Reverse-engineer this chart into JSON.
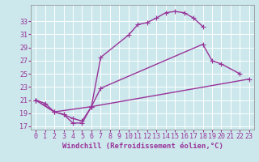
{
  "background_color": "#cce8ec",
  "grid_color": "#ffffff",
  "line_color": "#993399",
  "markersize": 4,
  "linewidth": 1.0,
  "xlim": [
    -0.5,
    23.5
  ],
  "ylim": [
    16.5,
    35.5
  ],
  "yticks": [
    17,
    19,
    21,
    23,
    25,
    27,
    29,
    31,
    33
  ],
  "xticks": [
    0,
    1,
    2,
    3,
    4,
    5,
    6,
    7,
    8,
    9,
    10,
    11,
    12,
    13,
    14,
    15,
    16,
    17,
    18,
    19,
    20,
    21,
    22,
    23
  ],
  "xlabel": "Windchill (Refroidissement éolien,°C)",
  "xlabel_fontsize": 6.5,
  "tick_fontsize": 6.0,
  "curve1_x": [
    0,
    1,
    2,
    3,
    4,
    5,
    6,
    7,
    10,
    11,
    12,
    13,
    14,
    15,
    16,
    17,
    18
  ],
  "curve1_y": [
    21.0,
    20.5,
    19.2,
    18.8,
    17.5,
    17.5,
    20.0,
    27.5,
    30.9,
    32.5,
    32.8,
    33.5,
    34.3,
    34.5,
    34.3,
    33.5,
    32.2
  ],
  "curve2_x": [
    0,
    2,
    3,
    4,
    5,
    6,
    7,
    18,
    19,
    20,
    22
  ],
  "curve2_y": [
    21.0,
    19.2,
    18.8,
    18.2,
    17.8,
    20.0,
    22.8,
    29.5,
    27.0,
    26.5,
    25.0
  ],
  "curve3_x": [
    0,
    2,
    6,
    23
  ],
  "curve3_y": [
    21.0,
    19.2,
    20.0,
    24.2
  ]
}
